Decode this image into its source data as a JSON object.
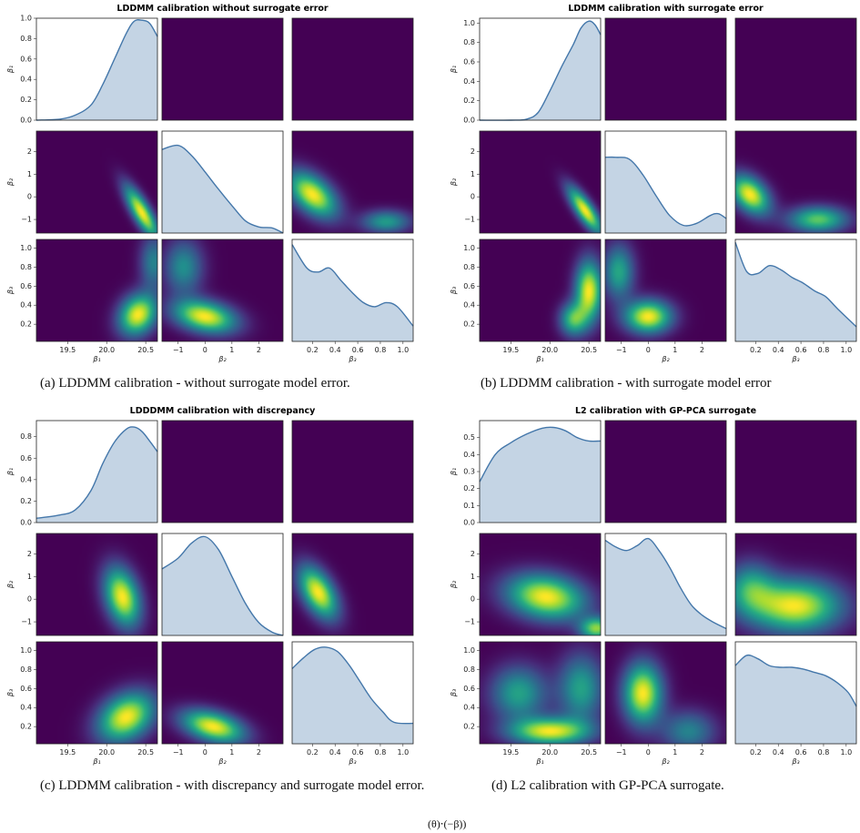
{
  "colors": {
    "viridis_low": "#440154",
    "viridis_high": "#fde725",
    "density_line": "#4477aa",
    "density_fill": "#c4d4e4"
  },
  "params": {
    "beta1": {
      "label": "β₁",
      "range": [
        19.1,
        20.65
      ],
      "ticks": [
        "19.5",
        "20.0",
        "20.5"
      ],
      "tick_values": [
        19.5,
        20.0,
        20.5
      ]
    },
    "beta2": {
      "label": "β₂",
      "range": [
        -1.6,
        2.9
      ],
      "ticks": [
        "−1",
        "0",
        "1",
        "2"
      ],
      "tick_values": [
        -1,
        0,
        1,
        2
      ]
    },
    "beta3": {
      "label": "β₃",
      "range": [
        0.02,
        1.09
      ],
      "ticks": [
        "0.2",
        "0.4",
        "0.6",
        "0.8",
        "1.0"
      ],
      "tick_values": [
        0.2,
        0.4,
        0.6,
        0.8,
        1.0
      ]
    }
  },
  "row_y_ticks": {
    "beta2": {
      "labels": [
        "−1",
        "0",
        "1",
        "2"
      ],
      "values": [
        -1,
        0,
        1,
        2
      ]
    },
    "beta3": {
      "labels": [
        "0.2",
        "0.4",
        "0.6",
        "0.8",
        "1.0"
      ],
      "values": [
        0.2,
        0.4,
        0.6,
        0.8,
        1.0
      ]
    }
  },
  "chart_data": [
    {
      "type": "heatmap",
      "title": "LDDMM calibration without surrogate error",
      "caption": "(a) LDDMM calibration - without surrogate model error.",
      "diag_ylim": [
        0,
        1.0
      ],
      "diag_yticks": [
        "0.0",
        "0.2",
        "0.4",
        "0.6",
        "0.8",
        "1.0"
      ],
      "diag_ytick_values": [
        0,
        0.2,
        0.4,
        0.6,
        0.8,
        1.0
      ],
      "marginals": [
        {
          "param": "beta1",
          "x": [
            19.1,
            19.4,
            19.6,
            19.8,
            19.95,
            20.1,
            20.25,
            20.35,
            20.45,
            20.55,
            20.65
          ],
          "y": [
            0.0,
            0.01,
            0.05,
            0.15,
            0.35,
            0.6,
            0.85,
            0.97,
            0.98,
            0.95,
            0.82
          ]
        },
        {
          "param": "beta2",
          "x": [
            -1.6,
            -1.0,
            -0.5,
            0.0,
            0.5,
            1.0,
            1.5,
            2.0,
            2.5,
            2.9
          ],
          "y": [
            0.82,
            0.86,
            0.76,
            0.6,
            0.43,
            0.27,
            0.12,
            0.06,
            0.05,
            0.0
          ]
        },
        {
          "param": "beta3",
          "x": [
            0.02,
            0.15,
            0.25,
            0.35,
            0.45,
            0.55,
            0.65,
            0.75,
            0.85,
            0.95,
            1.09
          ],
          "y": [
            0.95,
            0.72,
            0.68,
            0.72,
            0.6,
            0.48,
            0.38,
            0.34,
            0.38,
            0.34,
            0.15
          ]
        }
      ],
      "densities": [
        {
          "row": "beta1",
          "col": "beta2",
          "blobs": [
            {
              "cx": -0.6,
              "cy": 0.82,
              "sx": 0.9,
              "sy": 0.08,
              "rho": -0.6,
              "w": 1.0
            }
          ]
        },
        {
          "row": "beta1",
          "col": "beta3",
          "blobs": [
            {
              "cx": 0.4,
              "cy": 0.82,
              "sx": 0.22,
              "sy": 0.1,
              "rho": 0.5,
              "w": 1.0
            }
          ]
        },
        {
          "row": "beta2",
          "col": "beta1",
          "blobs": [
            {
              "cx": 20.45,
              "cy": -0.7,
              "sx": 0.15,
              "sy": 0.8,
              "rho": -0.8,
              "w": 1.0
            }
          ]
        },
        {
          "row": "beta2",
          "col": "beta3",
          "blobs": [
            {
              "cx": 0.2,
              "cy": 0.1,
              "sx": 0.15,
              "sy": 0.7,
              "rho": -0.5,
              "w": 1.0
            },
            {
              "cx": 0.85,
              "cy": -1.1,
              "sx": 0.15,
              "sy": 0.35,
              "rho": 0,
              "w": 0.55
            }
          ]
        },
        {
          "row": "beta3",
          "col": "beta1",
          "blobs": [
            {
              "cx": 20.4,
              "cy": 0.3,
              "sx": 0.17,
              "sy": 0.15,
              "rho": 0.2,
              "w": 1.0
            },
            {
              "cx": 20.6,
              "cy": 0.85,
              "sx": 0.12,
              "sy": 0.2,
              "rho": 0,
              "w": 0.45
            }
          ]
        },
        {
          "row": "beta3",
          "col": "beta2",
          "blobs": [
            {
              "cx": 0.0,
              "cy": 0.28,
              "sx": 0.8,
              "sy": 0.12,
              "rho": -0.3,
              "w": 1.0
            },
            {
              "cx": -0.8,
              "cy": 0.8,
              "sx": 0.5,
              "sy": 0.2,
              "rho": 0,
              "w": 0.5
            }
          ]
        }
      ]
    },
    {
      "type": "heatmap",
      "title": "LDDMM calibration with surrogate error",
      "caption": "(b) LDDMM calibration - with surrogate model error",
      "diag_ylim": [
        0,
        1.05
      ],
      "diag_yticks": [
        "0.0",
        "0.2",
        "0.4",
        "0.6",
        "0.8",
        "1.0"
      ],
      "diag_ytick_values": [
        0,
        0.2,
        0.4,
        0.6,
        0.8,
        1.0
      ],
      "marginals": [
        {
          "param": "beta1",
          "x": [
            19.1,
            19.5,
            19.7,
            19.85,
            20.0,
            20.15,
            20.3,
            20.4,
            20.5,
            20.58,
            20.65
          ],
          "y": [
            0.0,
            0.0,
            0.01,
            0.08,
            0.3,
            0.55,
            0.78,
            0.95,
            1.02,
            0.98,
            0.88
          ]
        },
        {
          "param": "beta2",
          "x": [
            -1.6,
            -1.2,
            -0.7,
            -0.2,
            0.3,
            0.8,
            1.3,
            1.8,
            2.3,
            2.6,
            2.9
          ],
          "y": [
            0.78,
            0.78,
            0.76,
            0.6,
            0.38,
            0.18,
            0.08,
            0.1,
            0.18,
            0.2,
            0.15
          ]
        },
        {
          "param": "beta3",
          "x": [
            0.02,
            0.12,
            0.22,
            0.32,
            0.42,
            0.52,
            0.62,
            0.72,
            0.82,
            0.92,
            1.09
          ],
          "y": [
            1.02,
            0.72,
            0.7,
            0.78,
            0.74,
            0.66,
            0.6,
            0.52,
            0.46,
            0.34,
            0.15
          ]
        }
      ],
      "densities": [
        {
          "row": "beta1",
          "col": "beta2",
          "blobs": [
            {
              "cx": -0.4,
              "cy": 0.85,
              "sx": 0.7,
              "sy": 0.08,
              "rho": -0.5,
              "w": 1.0
            }
          ]
        },
        {
          "row": "beta1",
          "col": "beta3",
          "blobs": [
            {
              "cx": 0.55,
              "cy": 1.0,
              "sx": 0.18,
              "sy": 0.1,
              "rho": 0,
              "w": 1.0
            },
            {
              "cx": 0.15,
              "cy": 0.88,
              "sx": 0.12,
              "sy": 0.1,
              "rho": 0,
              "w": 0.6
            }
          ]
        },
        {
          "row": "beta2",
          "col": "beta1",
          "blobs": [
            {
              "cx": 20.45,
              "cy": -0.6,
              "sx": 0.15,
              "sy": 0.7,
              "rho": -0.8,
              "w": 1.0
            }
          ]
        },
        {
          "row": "beta2",
          "col": "beta3",
          "blobs": [
            {
              "cx": 0.15,
              "cy": 0.1,
              "sx": 0.12,
              "sy": 0.6,
              "rho": -0.4,
              "w": 1.0
            },
            {
              "cx": 0.75,
              "cy": -1.0,
              "sx": 0.18,
              "sy": 0.4,
              "rho": 0,
              "w": 0.75
            }
          ]
        },
        {
          "row": "beta3",
          "col": "beta1",
          "blobs": [
            {
              "cx": 20.5,
              "cy": 0.55,
              "sx": 0.12,
              "sy": 0.22,
              "rho": 0,
              "w": 1.0
            },
            {
              "cx": 20.3,
              "cy": 0.25,
              "sx": 0.12,
              "sy": 0.12,
              "rho": 0,
              "w": 0.7
            }
          ]
        },
        {
          "row": "beta3",
          "col": "beta2",
          "blobs": [
            {
              "cx": 0.0,
              "cy": 0.28,
              "sx": 0.6,
              "sy": 0.12,
              "rho": 0,
              "w": 1.0
            },
            {
              "cx": -1.1,
              "cy": 0.75,
              "sx": 0.4,
              "sy": 0.2,
              "rho": 0,
              "w": 0.6
            }
          ]
        }
      ]
    },
    {
      "type": "heatmap",
      "title": "LDDDMM calibration with discrepancy",
      "caption": "(c) LDDMM calibration - with discrepancy and surrogate model error.",
      "diag_ylim": [
        0,
        0.95
      ],
      "diag_yticks": [
        "0.0",
        "0.2",
        "0.4",
        "0.6",
        "0.8"
      ],
      "diag_ytick_values": [
        0,
        0.2,
        0.4,
        0.6,
        0.8
      ],
      "marginals": [
        {
          "param": "beta1",
          "x": [
            19.1,
            19.4,
            19.6,
            19.8,
            19.95,
            20.1,
            20.25,
            20.35,
            20.45,
            20.55,
            20.65
          ],
          "y": [
            0.04,
            0.07,
            0.12,
            0.3,
            0.55,
            0.75,
            0.87,
            0.89,
            0.85,
            0.76,
            0.66
          ]
        },
        {
          "param": "beta2",
          "x": [
            -1.6,
            -1.0,
            -0.5,
            0.0,
            0.5,
            1.0,
            1.5,
            2.0,
            2.5,
            2.9
          ],
          "y": [
            0.62,
            0.72,
            0.86,
            0.92,
            0.8,
            0.55,
            0.3,
            0.12,
            0.03,
            0.0
          ]
        },
        {
          "param": "beta3",
          "x": [
            0.02,
            0.12,
            0.22,
            0.32,
            0.42,
            0.52,
            0.62,
            0.72,
            0.82,
            0.92,
            1.09
          ],
          "y": [
            0.7,
            0.8,
            0.88,
            0.9,
            0.86,
            0.74,
            0.58,
            0.42,
            0.3,
            0.2,
            0.19
          ]
        }
      ],
      "densities": [
        {
          "row": "beta1",
          "col": "beta2",
          "blobs": [
            {
              "cx": 0.0,
              "cy": 0.68,
              "sx": 0.85,
              "sy": 0.09,
              "rho": 0,
              "w": 1.0
            }
          ]
        },
        {
          "row": "beta1",
          "col": "beta3",
          "blobs": [
            {
              "cx": 0.35,
              "cy": 0.68,
              "sx": 0.2,
              "sy": 0.1,
              "rho": 0.2,
              "w": 1.0
            }
          ]
        },
        {
          "row": "beta2",
          "col": "beta1",
          "blobs": [
            {
              "cx": 20.2,
              "cy": 0.1,
              "sx": 0.16,
              "sy": 0.9,
              "rho": -0.3,
              "w": 1.0
            }
          ]
        },
        {
          "row": "beta2",
          "col": "beta3",
          "blobs": [
            {
              "cx": 0.25,
              "cy": 0.3,
              "sx": 0.12,
              "sy": 0.8,
              "rho": -0.5,
              "w": 1.0
            }
          ]
        },
        {
          "row": "beta3",
          "col": "beta1",
          "blobs": [
            {
              "cx": 20.25,
              "cy": 0.3,
              "sx": 0.25,
              "sy": 0.18,
              "rho": 0.3,
              "w": 1.0
            }
          ]
        },
        {
          "row": "beta3",
          "col": "beta2",
          "blobs": [
            {
              "cx": 0.3,
              "cy": 0.2,
              "sx": 0.8,
              "sy": 0.12,
              "rho": -0.4,
              "w": 1.0
            }
          ]
        }
      ]
    },
    {
      "type": "heatmap",
      "title": "L2 calibration with GP-PCA surrogate",
      "caption": "(d) L2 calibration with GP-PCA surrogate.",
      "diag_ylim": [
        0,
        0.6
      ],
      "diag_yticks": [
        "0.0",
        "0.1",
        "0.2",
        "0.3",
        "0.4",
        "0.5"
      ],
      "diag_ytick_values": [
        0,
        0.1,
        0.2,
        0.3,
        0.4,
        0.5
      ],
      "marginals": [
        {
          "param": "beta1",
          "x": [
            19.1,
            19.3,
            19.5,
            19.7,
            19.9,
            20.05,
            20.2,
            20.35,
            20.5,
            20.65
          ],
          "y": [
            0.24,
            0.4,
            0.47,
            0.52,
            0.555,
            0.56,
            0.54,
            0.5,
            0.48,
            0.48
          ]
        },
        {
          "param": "beta2",
          "x": [
            -1.6,
            -1.2,
            -0.8,
            -0.4,
            0.0,
            0.4,
            0.8,
            1.2,
            1.6,
            2.0,
            2.4,
            2.9
          ],
          "y": [
            0.56,
            0.52,
            0.5,
            0.53,
            0.57,
            0.5,
            0.4,
            0.28,
            0.18,
            0.12,
            0.08,
            0.04
          ]
        },
        {
          "param": "beta3",
          "x": [
            0.02,
            0.12,
            0.22,
            0.32,
            0.42,
            0.52,
            0.62,
            0.72,
            0.82,
            0.92,
            1.02,
            1.09
          ],
          "y": [
            0.46,
            0.52,
            0.5,
            0.46,
            0.45,
            0.45,
            0.44,
            0.42,
            0.4,
            0.36,
            0.3,
            0.22
          ]
        }
      ],
      "densities": [
        {
          "row": "beta1",
          "col": "beta2",
          "blobs": [
            {
              "cx": -0.1,
              "cy": 0.33,
              "sx": 0.7,
              "sy": 0.12,
              "rho": 0,
              "w": 1.0
            },
            {
              "cx": 1.5,
              "cy": 0.15,
              "sx": 0.8,
              "sy": 0.15,
              "rho": 0,
              "w": 0.6
            },
            {
              "cx": -1.0,
              "cy": 0.5,
              "sx": 0.5,
              "sy": 0.1,
              "rho": 0,
              "w": 0.4
            }
          ]
        },
        {
          "row": "beta1",
          "col": "beta3",
          "blobs": [
            {
              "cx": 0.1,
              "cy": 0.37,
              "sx": 0.12,
              "sy": 0.12,
              "rho": 0,
              "w": 1.0
            },
            {
              "cx": 0.9,
              "cy": 0.1,
              "sx": 0.25,
              "sy": 0.12,
              "rho": 0,
              "w": 0.7
            },
            {
              "cx": 0.6,
              "cy": 0.4,
              "sx": 0.25,
              "sy": 0.12,
              "rho": 0,
              "w": 0.55
            },
            {
              "cx": 0.85,
              "cy": 0.45,
              "sx": 0.15,
              "sy": 0.1,
              "rho": 0,
              "w": 0.5
            }
          ]
        },
        {
          "row": "beta2",
          "col": "beta1",
          "blobs": [
            {
              "cx": 19.95,
              "cy": 0.1,
              "sx": 0.35,
              "sy": 0.7,
              "rho": -0.2,
              "w": 1.0
            },
            {
              "cx": 20.6,
              "cy": -1.3,
              "sx": 0.15,
              "sy": 0.35,
              "rho": 0,
              "w": 0.8
            }
          ]
        },
        {
          "row": "beta2",
          "col": "beta3",
          "blobs": [
            {
              "cx": 0.55,
              "cy": -0.3,
              "sx": 0.28,
              "sy": 0.8,
              "rho": 0,
              "w": 1.0
            },
            {
              "cx": 0.15,
              "cy": 0.5,
              "sx": 0.15,
              "sy": 0.8,
              "rho": 0,
              "w": 0.55
            }
          ]
        },
        {
          "row": "beta3",
          "col": "beta1",
          "blobs": [
            {
              "cx": 20.0,
              "cy": 0.15,
              "sx": 0.35,
              "sy": 0.1,
              "rho": 0,
              "w": 1.0
            },
            {
              "cx": 19.6,
              "cy": 0.55,
              "sx": 0.25,
              "sy": 0.2,
              "rho": 0,
              "w": 0.6
            },
            {
              "cx": 20.4,
              "cy": 0.6,
              "sx": 0.2,
              "sy": 0.25,
              "rho": 0,
              "w": 0.6
            }
          ]
        },
        {
          "row": "beta3",
          "col": "beta2",
          "blobs": [
            {
              "cx": -0.2,
              "cy": 0.55,
              "sx": 0.5,
              "sy": 0.22,
              "rho": 0,
              "w": 1.0
            },
            {
              "cx": 1.5,
              "cy": 0.15,
              "sx": 0.7,
              "sy": 0.15,
              "rho": 0,
              "w": 0.45
            }
          ]
        }
      ]
    }
  ],
  "footer_fragment": "(θ)⋅(−β))"
}
